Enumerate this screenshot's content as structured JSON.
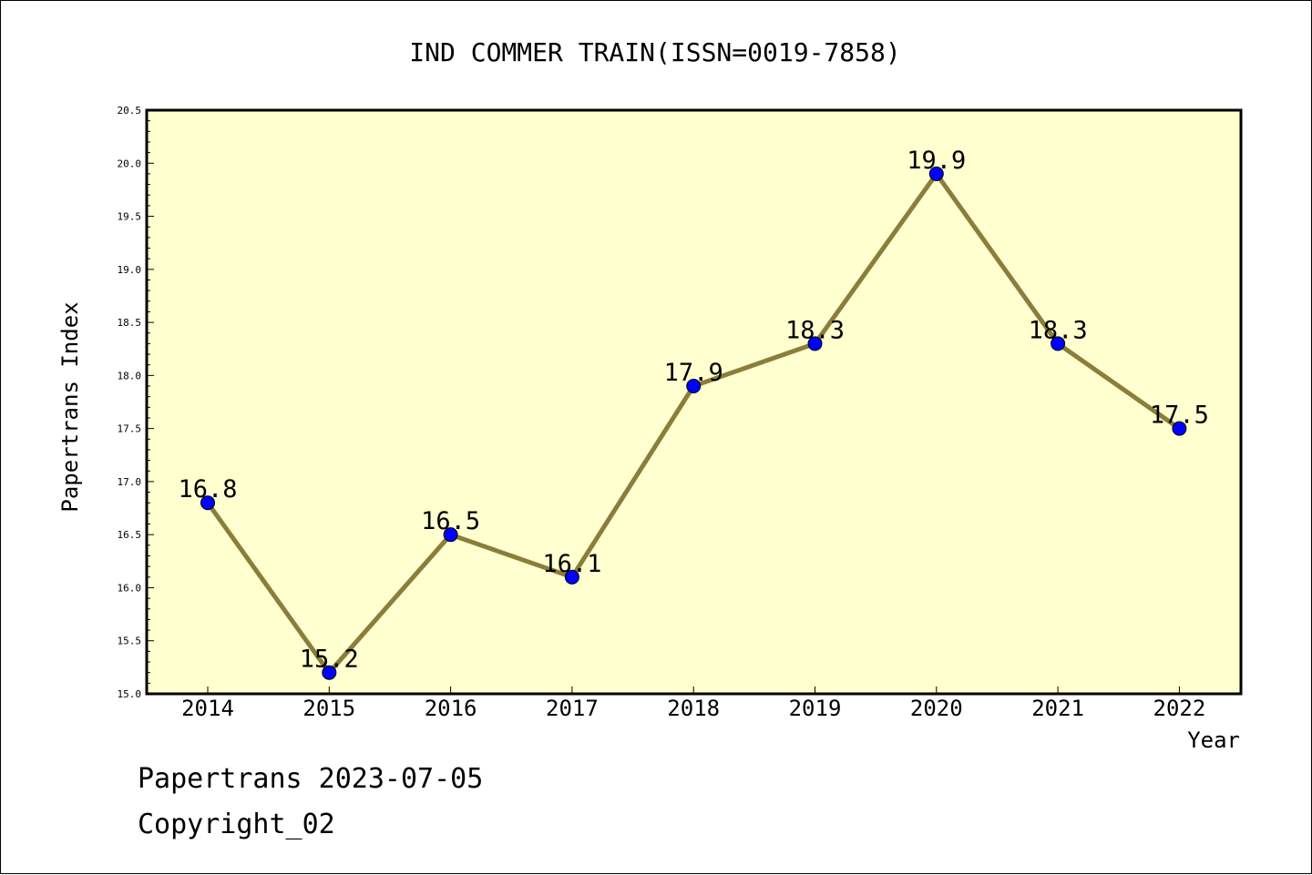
{
  "chart_data": {
    "type": "line",
    "title": "IND COMMER TRAIN(ISSN=0019-7858)",
    "xlabel": "Year",
    "ylabel": "Papertrans Index",
    "categories": [
      "2014",
      "2015",
      "2016",
      "2017",
      "2018",
      "2019",
      "2020",
      "2021",
      "2022"
    ],
    "values": [
      16.8,
      15.2,
      16.5,
      16.1,
      17.9,
      18.3,
      19.9,
      18.3,
      17.5
    ],
    "data_labels": [
      "16.8",
      "15.2",
      "16.5",
      "16.1",
      "17.9",
      "18.3",
      "19.9",
      "18.3",
      "17.5"
    ],
    "ylim": [
      15.0,
      20.5
    ],
    "yticks": [
      "15.0",
      "15.5",
      "16.0",
      "16.5",
      "17.0",
      "17.5",
      "18.0",
      "18.5",
      "19.0",
      "19.5",
      "20.0",
      "20.5"
    ],
    "grid": false,
    "colors": {
      "plot_background": "#ffffd0",
      "line": "#8b7d3a",
      "marker": "#0000ff"
    }
  },
  "footer": {
    "line1": "Papertrans 2023-07-05",
    "line2": "Copyright_02"
  }
}
